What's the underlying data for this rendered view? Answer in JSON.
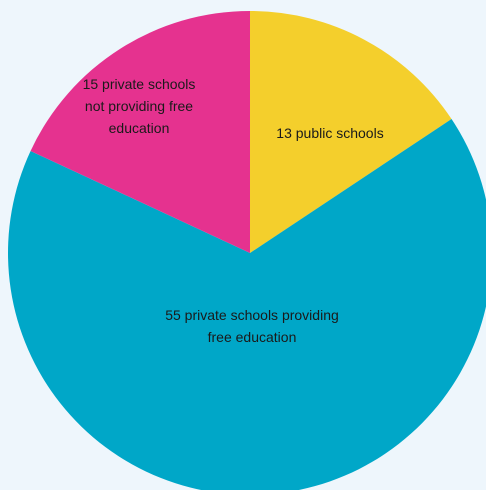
{
  "chart_data": {
    "type": "pie",
    "start_angle_deg": 0,
    "slices": [
      {
        "label_lines": [
          "13 public schools"
        ],
        "value": 13,
        "color": "#f4cf2c"
      },
      {
        "label_lines": [
          "55 private schools providing",
          "free education"
        ],
        "value": 55,
        "color": "#00a7c8"
      },
      {
        "label_lines": [
          "15 private schools",
          "not providing free",
          "education"
        ],
        "value": 15,
        "color": "#e5328f"
      }
    ]
  }
}
